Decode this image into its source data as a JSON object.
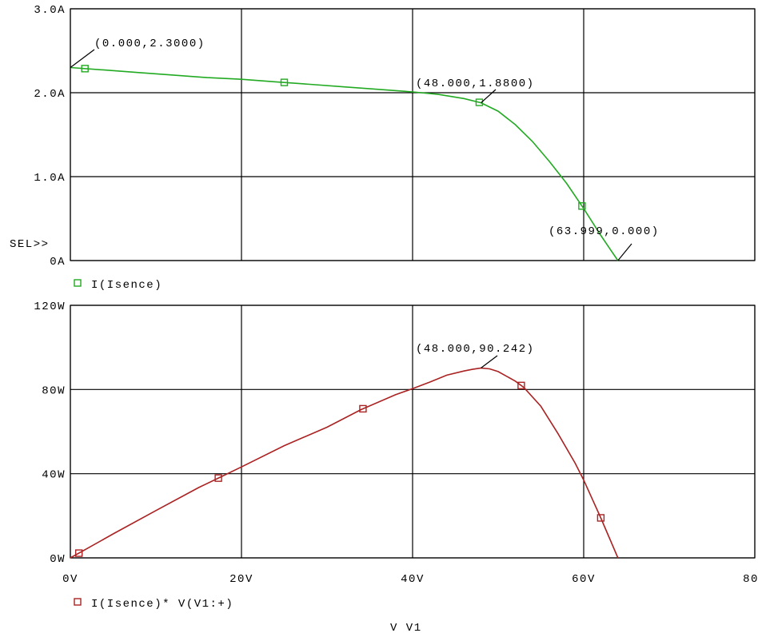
{
  "chart_data": [
    {
      "type": "line",
      "title": "",
      "xlabel": "",
      "ylabel": "",
      "xlim": [
        0,
        80
      ],
      "ylim": [
        0,
        3
      ],
      "grid": true,
      "y_tick_labels": [
        "0A",
        "1.0A",
        "2.0A",
        "3.0A"
      ],
      "y_ticks": [
        0,
        1,
        2,
        3
      ],
      "selection_marker": "SEL>>",
      "series": [
        {
          "name": "I(Isence)",
          "color": "#22aa22",
          "x": [
            0,
            4,
            8,
            12,
            16,
            20,
            24,
            28,
            32,
            36,
            40,
            43,
            46,
            48,
            50,
            52,
            54,
            56,
            58,
            60,
            62,
            63,
            64
          ],
          "y": [
            2.3,
            2.27,
            2.24,
            2.21,
            2.18,
            2.16,
            2.13,
            2.1,
            2.07,
            2.04,
            2.01,
            1.98,
            1.93,
            1.88,
            1.78,
            1.62,
            1.42,
            1.18,
            0.92,
            0.62,
            0.3,
            0.15,
            0.0
          ],
          "marker_x": [
            1.7,
            25,
            47.8,
            59.8
          ]
        }
      ],
      "annotations": [
        {
          "text": "(0.000,2.3000)",
          "x": 0,
          "y": 2.3
        },
        {
          "text": "(48.000,1.8800)",
          "x": 48,
          "y": 1.88
        },
        {
          "text": "(63.999,0.000)",
          "x": 64,
          "y": 0
        }
      ]
    },
    {
      "type": "line",
      "title": "",
      "xlabel": "V V1",
      "ylabel": "",
      "xlim": [
        0,
        80
      ],
      "ylim": [
        0,
        120
      ],
      "grid": true,
      "x_tick_labels": [
        "0V",
        "20V",
        "40V",
        "60V",
        "80V"
      ],
      "x_ticks": [
        0,
        20,
        40,
        60,
        80
      ],
      "y_tick_labels": [
        "0W",
        "40W",
        "80W",
        "120W"
      ],
      "y_ticks": [
        0,
        40,
        80,
        120
      ],
      "series": [
        {
          "name": "I(Isence)* V(V1:+)",
          "color": "#aa2222",
          "x": [
            0,
            2,
            5,
            10,
            15,
            17.5,
            20,
            25,
            30,
            34,
            38,
            40,
            42,
            44,
            46,
            47,
            48,
            49,
            50,
            52,
            53,
            55,
            57,
            59,
            60,
            61,
            62,
            63,
            64
          ],
          "y": [
            0,
            4.5,
            11.4,
            22.5,
            33.4,
            38.3,
            43.2,
            53.3,
            62.1,
            70.5,
            77.5,
            80.4,
            83.5,
            86.8,
            88.8,
            89.6,
            90.24,
            89.8,
            88.5,
            84.0,
            81.0,
            72.0,
            59.0,
            45.0,
            37.0,
            28.0,
            19.0,
            9.5,
            0
          ],
          "marker_x": [
            1,
            17.3,
            34.2,
            52.7,
            62
          ]
        }
      ],
      "annotations": [
        {
          "text": "(48.000,90.242)",
          "x": 48,
          "y": 90.242
        }
      ]
    }
  ]
}
